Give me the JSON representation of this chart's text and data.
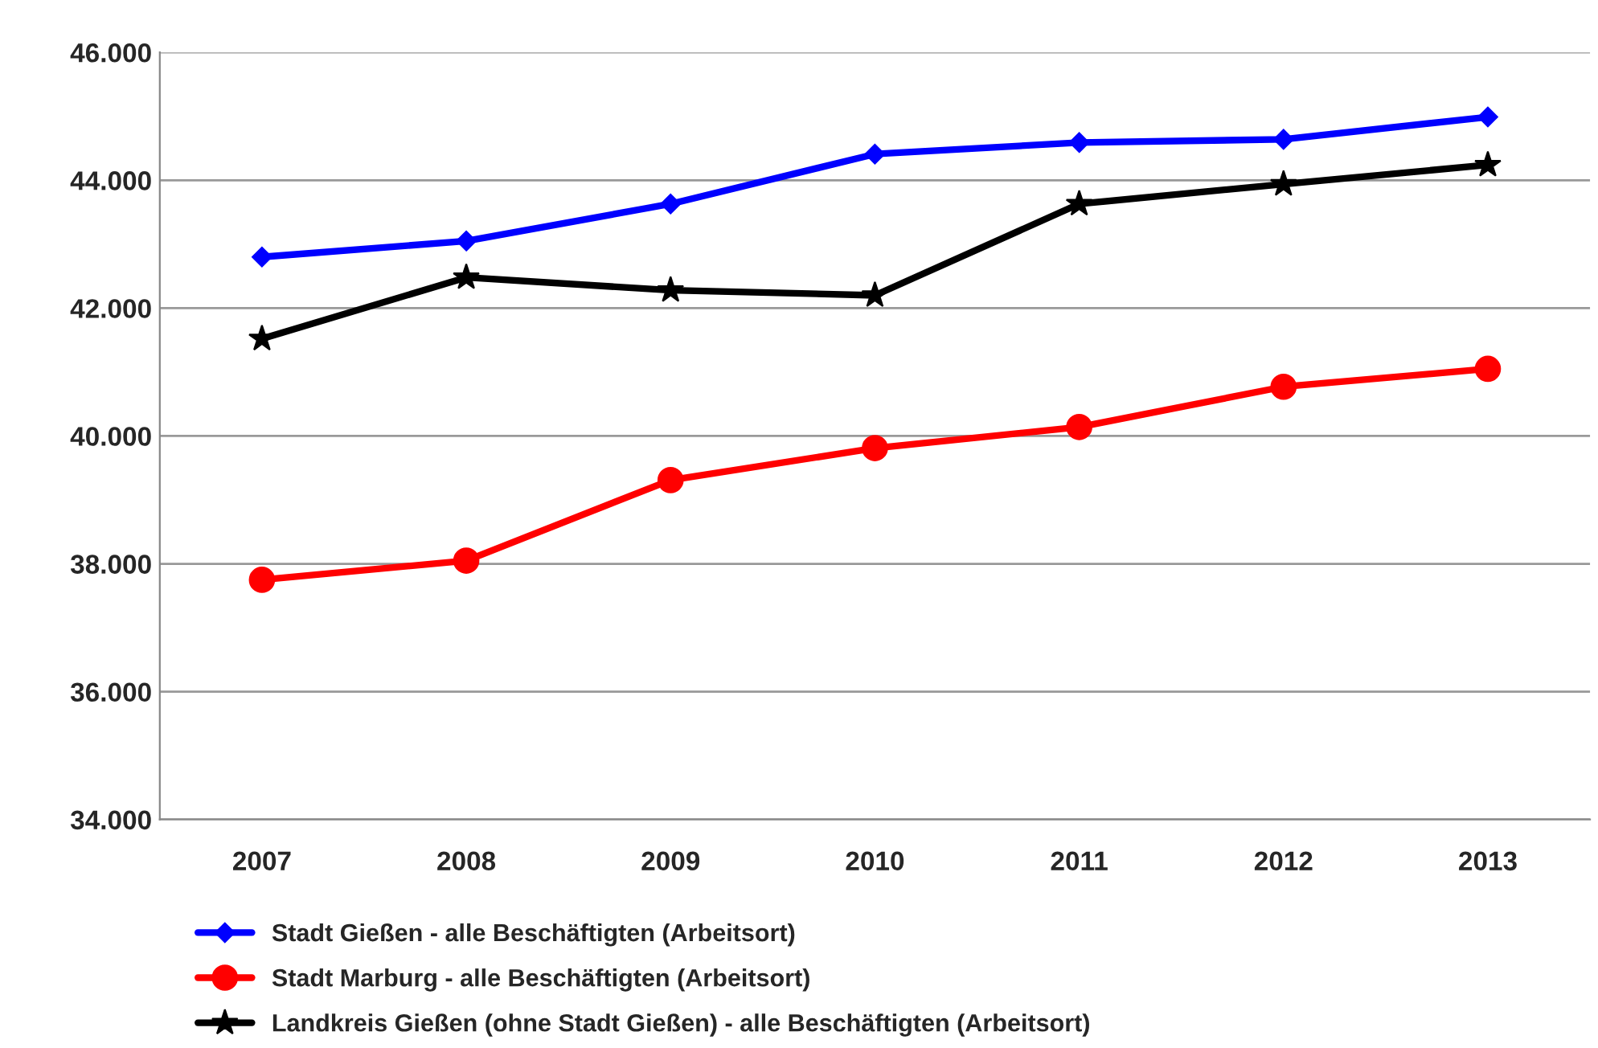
{
  "chart_data": {
    "type": "line",
    "categories": [
      "2007",
      "2008",
      "2009",
      "2010",
      "2011",
      "2012",
      "2013"
    ],
    "series": [
      {
        "name": "Stadt Gießen - alle Beschäftigten (Arbeitsort)",
        "color": "#0000ff",
        "marker": "diamond",
        "values": [
          42800,
          43050,
          43630,
          44410,
          44590,
          44640,
          44990
        ]
      },
      {
        "name": "Stadt Marburg - alle Beschäftigten (Arbeitsort)",
        "color": "#ff0000",
        "marker": "circle",
        "values": [
          37750,
          38050,
          39310,
          39810,
          40140,
          40770,
          41050
        ]
      },
      {
        "name": "Landkreis Gießen (ohne Stadt Gießen) - alle Beschäftigten (Arbeitsort)",
        "color": "#000000",
        "marker": "star",
        "values": [
          41520,
          42480,
          42280,
          42200,
          43630,
          43940,
          44240
        ]
      }
    ],
    "ylim": [
      34000,
      46000
    ],
    "yticks": [
      {
        "value": 34000,
        "label": "34.000"
      },
      {
        "value": 36000,
        "label": "36.000"
      },
      {
        "value": 38000,
        "label": "38.000"
      },
      {
        "value": 40000,
        "label": "40.000"
      },
      {
        "value": 42000,
        "label": "42.000"
      },
      {
        "value": 44000,
        "label": "44.000"
      },
      {
        "value": 46000,
        "label": "46.000"
      }
    ],
    "grid": "y",
    "legend": "bottom",
    "line_style": "solid"
  }
}
